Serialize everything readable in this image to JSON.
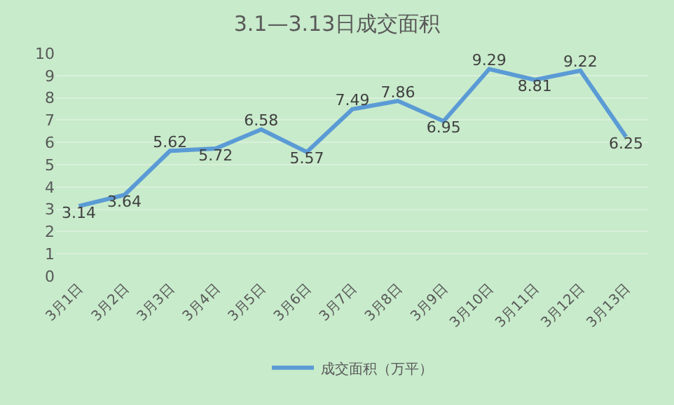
{
  "chart_data": {
    "type": "line",
    "title": "3.1—3.13日成交面积",
    "categories": [
      "3月1日",
      "3月2日",
      "3月3日",
      "3月4日",
      "3月5日",
      "3月6日",
      "3月7日",
      "3月8日",
      "3月9日",
      "3月10日",
      "3月11日",
      "3月12日",
      "3月13日"
    ],
    "series": [
      {
        "name": "成交面积（万平）",
        "color": "#5b9bd5",
        "values": [
          3.14,
          3.64,
          5.62,
          5.72,
          6.58,
          5.57,
          7.49,
          7.86,
          6.95,
          9.29,
          8.81,
          9.22,
          6.25
        ]
      }
    ],
    "ylim": [
      0,
      10
    ],
    "yticks": [
      0,
      1,
      2,
      3,
      4,
      5,
      6,
      7,
      8,
      9,
      10
    ],
    "grid": "y",
    "legend": "bottom",
    "data_labels": true,
    "marker": "none",
    "line_style": "solid"
  }
}
